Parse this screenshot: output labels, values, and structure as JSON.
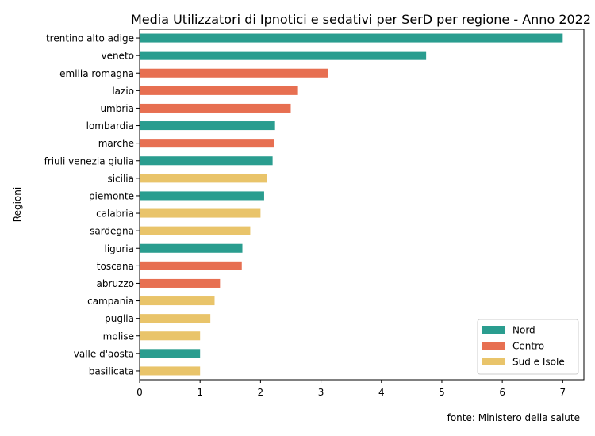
{
  "chart_data": {
    "type": "bar",
    "orientation": "horizontal",
    "title": "Media Utilizzatori di Ipnotici e sedativi per SerD per regione - Anno 2022",
    "xlabel": "",
    "ylabel": "Regioni",
    "xlim": [
      0,
      7.35
    ],
    "xticks": [
      "0",
      "1",
      "2",
      "3",
      "4",
      "5",
      "6",
      "7"
    ],
    "grid": false,
    "legend_position": "lower right",
    "source_note": "fonte: Ministero della salute",
    "groups": [
      {
        "name": "Nord",
        "color": "#2a9d8f"
      },
      {
        "name": "Centro",
        "color": "#e76f51"
      },
      {
        "name": "Sud e Isole",
        "color": "#e9c46a"
      }
    ],
    "categories": [
      "trentino alto adige",
      "veneto",
      "emilia romagna",
      "lazio",
      "umbria",
      "lombardia",
      "marche",
      "friuli venezia giulia",
      "sicilia",
      "piemonte",
      "calabria",
      "sardegna",
      "liguria",
      "toscana",
      "abruzzo",
      "campania",
      "puglia",
      "molise",
      "valle d'aosta",
      "basilicata"
    ],
    "values": [
      7.0,
      4.74,
      3.12,
      2.62,
      2.5,
      2.24,
      2.22,
      2.2,
      2.1,
      2.06,
      2.0,
      1.83,
      1.7,
      1.69,
      1.33,
      1.24,
      1.17,
      1.0,
      1.0,
      1.0
    ],
    "bar_groups": [
      "Nord",
      "Nord",
      "Centro",
      "Centro",
      "Centro",
      "Nord",
      "Centro",
      "Nord",
      "Sud e Isole",
      "Nord",
      "Sud e Isole",
      "Sud e Isole",
      "Nord",
      "Centro",
      "Centro",
      "Sud e Isole",
      "Sud e Isole",
      "Sud e Isole",
      "Nord",
      "Sud e Isole"
    ]
  }
}
